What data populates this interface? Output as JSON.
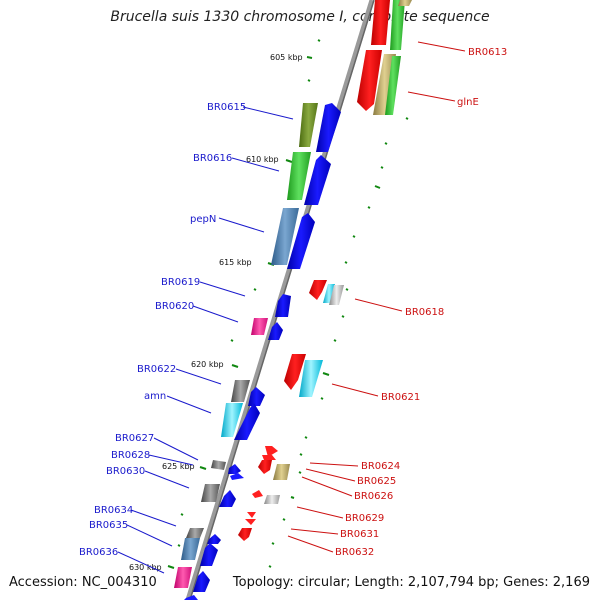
{
  "title": "Brucella suis 1330 chromosome I, complete sequence",
  "accession": "Accession: NC_004310",
  "summary": "Topology: circular; Length: 2,107,794 bp; Genes: 2,169",
  "ticks": [
    "605 kbp",
    "610 kbp",
    "615 kbp",
    "620 kbp",
    "625 kbp",
    "630 kbp"
  ],
  "left_labels": [
    "BR0615",
    "BR0616",
    "pepN",
    "BR0619",
    "BR0620",
    "BR0622",
    "amn",
    "BR0627",
    "BR0628",
    "BR0630",
    "BR0634",
    "BR0635",
    "BR0636"
  ],
  "right_labels": [
    "BR0613",
    "glnE",
    "BR0618",
    "BR0621",
    "BR0624",
    "BR0625",
    "BR0626",
    "BR0629",
    "BR0631",
    "BR0632"
  ],
  "colors": {
    "left_label": "#1a1acc",
    "right_label": "#cc1111",
    "tick": "#118811",
    "backbone": "#8a8a8a"
  }
}
